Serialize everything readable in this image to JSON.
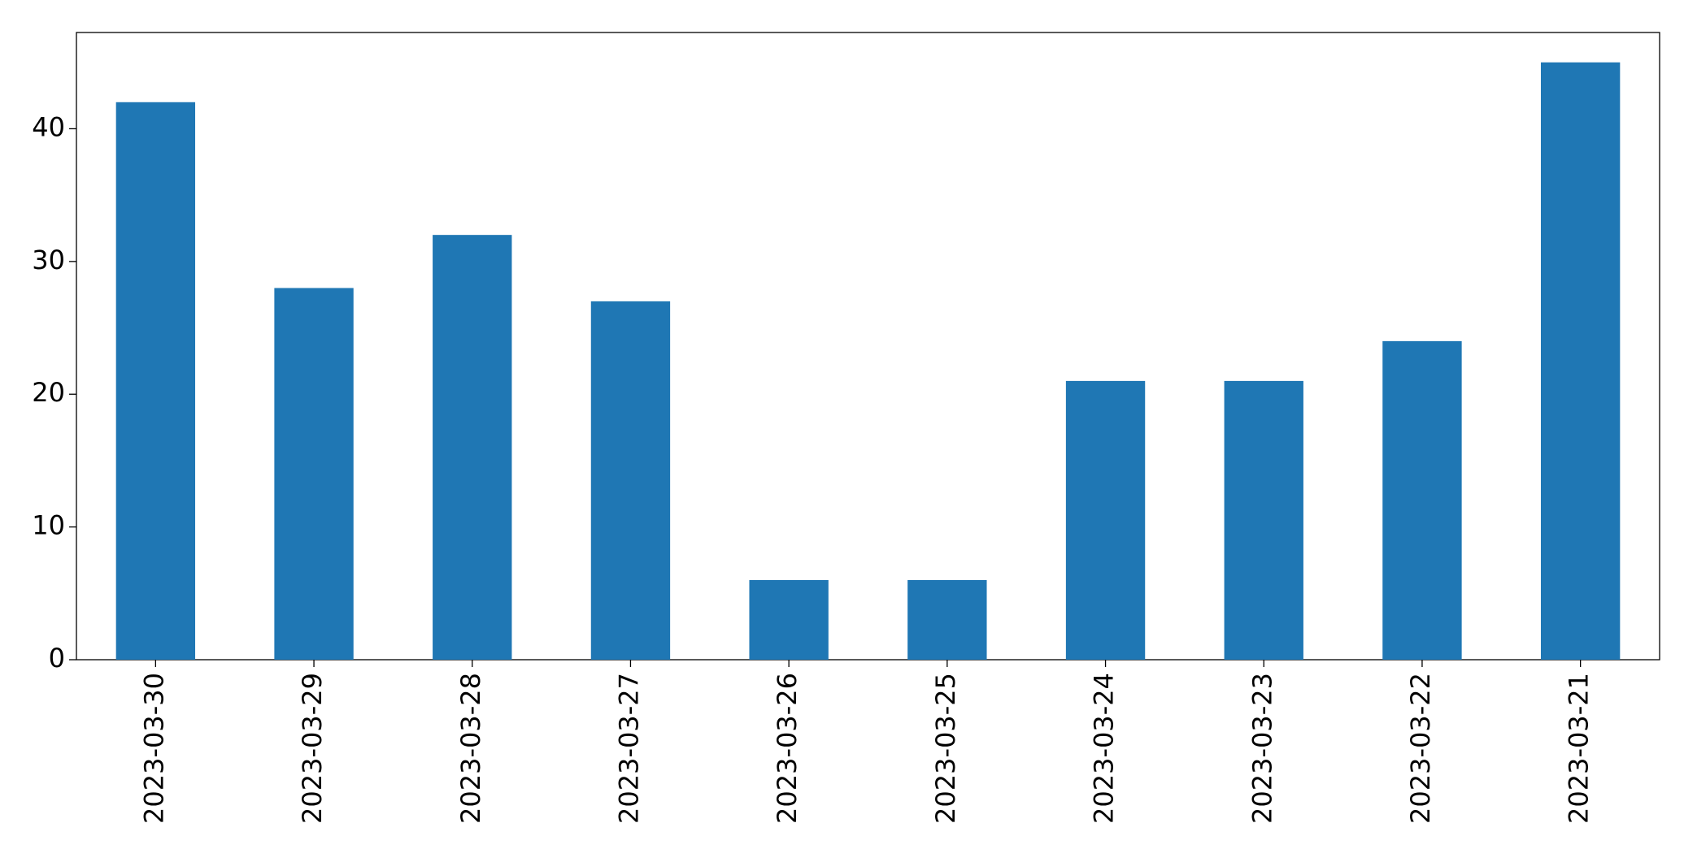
{
  "chart_data": {
    "type": "bar",
    "categories": [
      "2023-03-30",
      "2023-03-29",
      "2023-03-28",
      "2023-03-27",
      "2023-03-26",
      "2023-03-25",
      "2023-03-24",
      "2023-03-23",
      "2023-03-22",
      "2023-03-21"
    ],
    "values": [
      42,
      28,
      32,
      27,
      6,
      6,
      21,
      21,
      24,
      45
    ],
    "color": "#1f77b4",
    "ylim": [
      0,
      47.25
    ],
    "yticks": [
      0,
      10,
      20,
      30,
      40
    ],
    "grid": false
  }
}
